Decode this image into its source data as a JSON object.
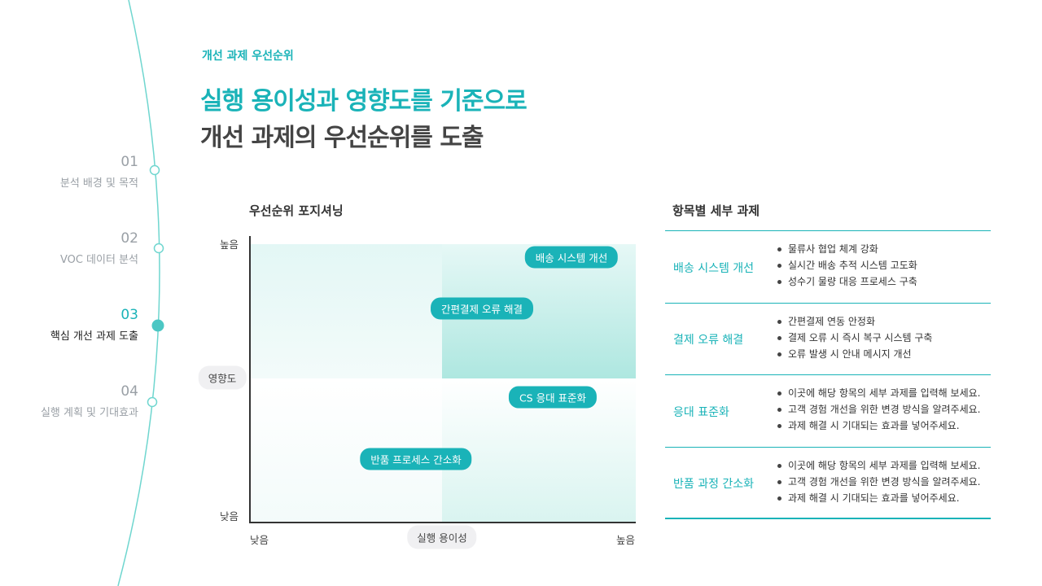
{
  "nav": [
    {
      "number": "01",
      "label": "분석 배경 및 목적"
    },
    {
      "number": "02",
      "label": "VOC 데이터 분석"
    },
    {
      "number": "03",
      "label": "핵심 개선 과제 도출"
    },
    {
      "number": "04",
      "label": "실행 계획 및 기대효과"
    }
  ],
  "header": {
    "eyebrow": "개선 과제 우선순위",
    "title_line1": "실행 용이성과 영향도를 기준으로",
    "title_line2": "개선 과제의 우선순위를 도출"
  },
  "matrix": {
    "title": "우선순위 포지셔닝",
    "y_axis": {
      "label": "영향도",
      "high": "높음",
      "low": "낮음"
    },
    "x_axis": {
      "label": "실행 용이성",
      "low": "낮음",
      "high": "높음"
    },
    "items": [
      "배송 시스템 개선",
      "간편결제 오류 해결",
      "CS 응대 표준화",
      "반품 프로세스 간소화"
    ]
  },
  "details": {
    "title": "항목별 세부 과제",
    "rows": [
      {
        "title": "배송 시스템 개선",
        "bullets": [
          "물류사 협업 체계 강화",
          "실시간 배송 추적 시스템 고도화",
          "성수기 물량 대응 프로세스 구축"
        ]
      },
      {
        "title": "결제 오류 해결",
        "bullets": [
          "간편결제 연동 안정화",
          "결제 오류 시 즉시 복구 시스템 구축",
          "오류 발생 시 안내 메시지 개선"
        ]
      },
      {
        "title": "응대 표준화",
        "bullets": [
          "이곳에 해당 항목의 세부 과제를 입력해 보세요.",
          "고객 경험 개선을 위한 변경 방식을 알려주세요.",
          "과제 해결 시 기대되는 효과를 넣어주세요."
        ]
      },
      {
        "title": "반품 과정 간소화",
        "bullets": [
          "이곳에 해당 항목의 세부 과제를 입력해 보세요.",
          "고객 경험 개선을 위한 변경 방식을 알려주세요.",
          "과제 해결 시 기대되는 효과를 넣어주세요."
        ]
      }
    ]
  }
}
